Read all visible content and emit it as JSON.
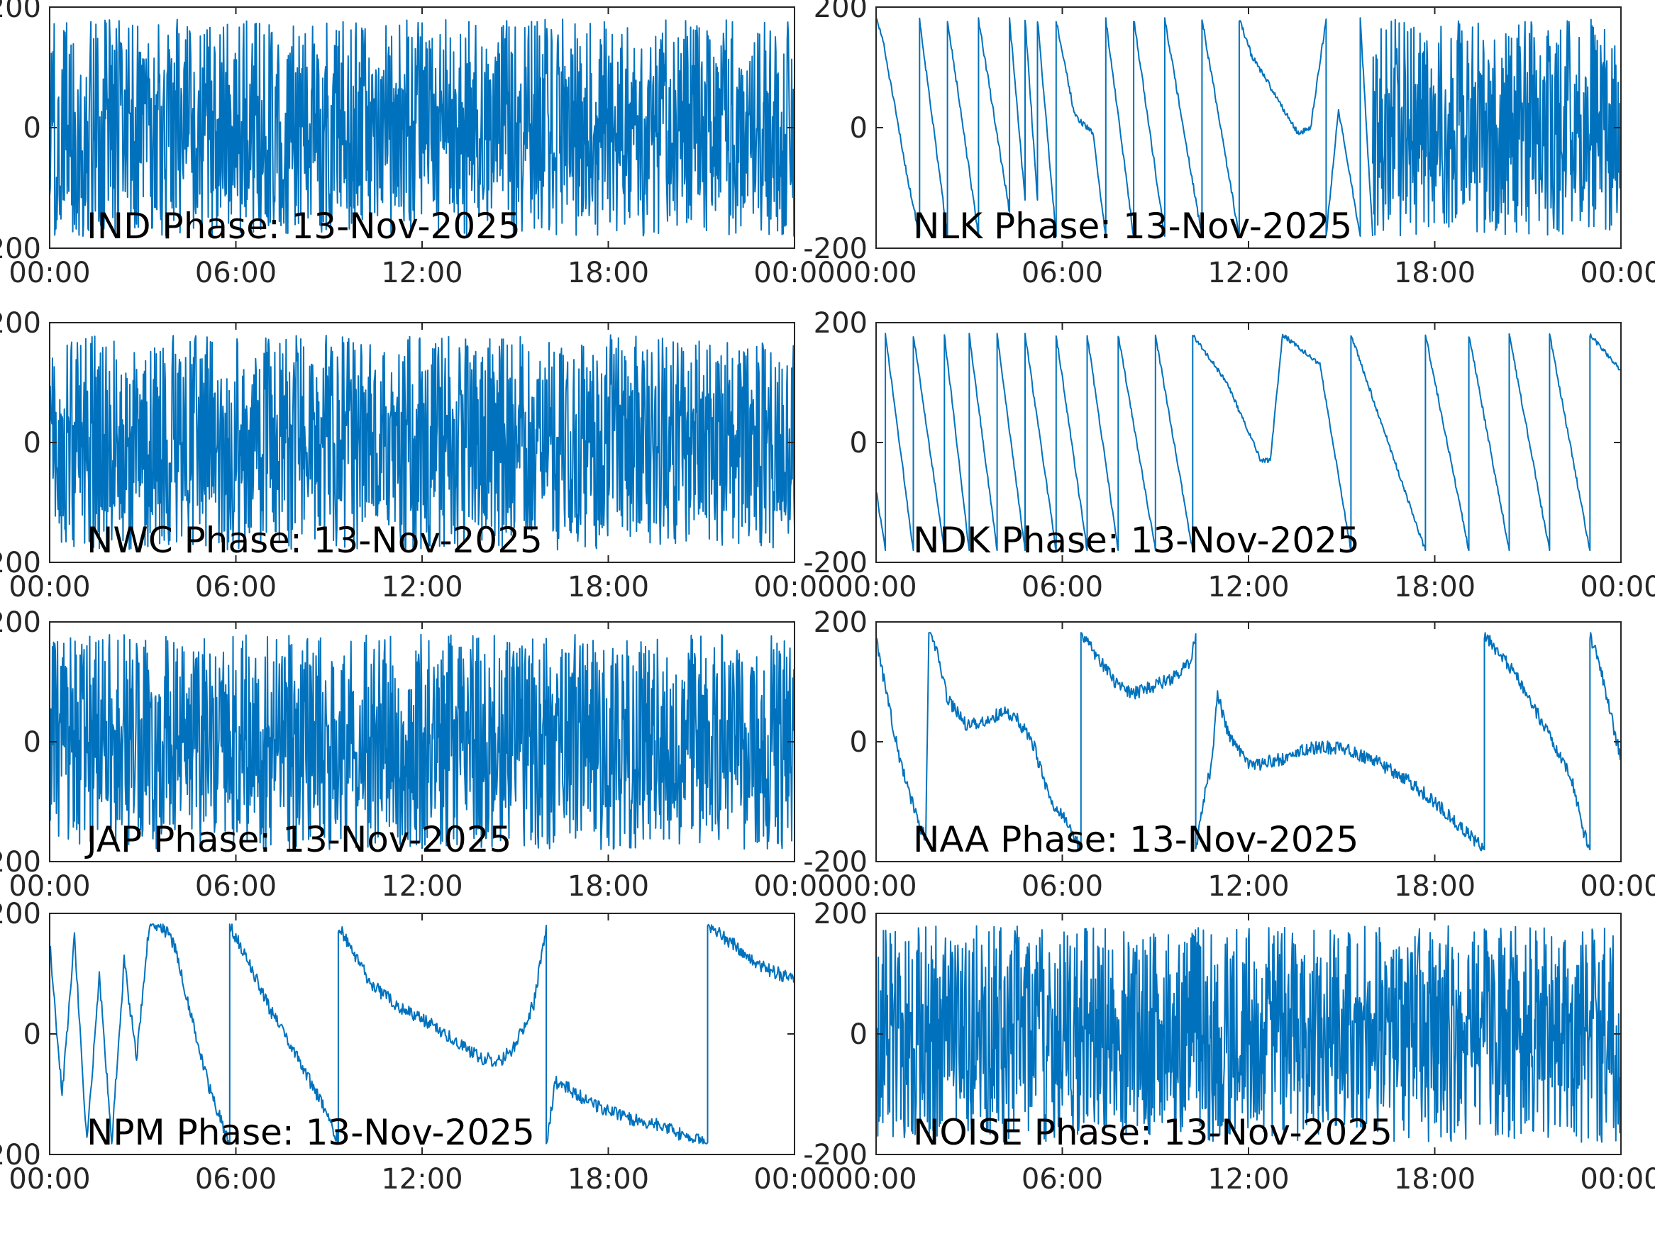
{
  "figure": {
    "line_color": "#0072BD",
    "frame_color": "#262626"
  },
  "chart_data": [
    {
      "type": "line",
      "label": "IND Phase: 13-Nov-2025",
      "xtick_labels": [
        "00:00",
        "06:00",
        "12:00",
        "18:00",
        "00:00"
      ],
      "ytick_labels": [
        "-200",
        "0",
        "200"
      ],
      "xlim_hours": [
        0,
        24
      ],
      "ylim": [
        -200,
        200
      ],
      "grid": false,
      "style": "wrap",
      "points": [
        [
          0,
          0
        ]
      ]
    },
    {
      "type": "line",
      "label": "NLK Phase: 13-Nov-2025",
      "xtick_labels": [
        "00:00",
        "06:00",
        "12:00",
        "18:00",
        "00:00"
      ],
      "ytick_labels": [
        "-200",
        "0",
        "200"
      ],
      "xlim_hours": [
        0,
        24
      ],
      "ylim": [
        -200,
        200
      ],
      "grid": false,
      "style": "mixed",
      "points": [
        [
          0,
          180
        ],
        [
          0.2,
          150
        ],
        [
          1,
          -80
        ],
        [
          1.4,
          -180
        ],
        [
          1.4,
          180
        ],
        [
          2.3,
          -180
        ],
        [
          2.3,
          180
        ],
        [
          3.3,
          -180
        ],
        [
          3.3,
          180
        ],
        [
          4.3,
          -140
        ],
        [
          4.3,
          180
        ],
        [
          4.8,
          -120
        ],
        [
          4.8,
          180
        ],
        [
          5.2,
          -120
        ],
        [
          5.2,
          180
        ],
        [
          5.8,
          -180
        ],
        [
          5.8,
          180
        ],
        [
          6.4,
          20
        ],
        [
          7.0,
          -10
        ],
        [
          7.2,
          -100
        ],
        [
          7.4,
          -180
        ],
        [
          7.4,
          180
        ],
        [
          8.3,
          -180
        ],
        [
          8.3,
          180
        ],
        [
          9.3,
          -180
        ],
        [
          9.3,
          180
        ],
        [
          10.5,
          -180
        ],
        [
          10.5,
          180
        ],
        [
          11.7,
          -180
        ],
        [
          11.7,
          180
        ],
        [
          12.1,
          120
        ],
        [
          13.6,
          -10
        ],
        [
          14,
          0
        ],
        [
          14.5,
          180
        ],
        [
          14.5,
          -180
        ],
        [
          14.9,
          30
        ],
        [
          15.6,
          -180
        ],
        [
          15.6,
          180
        ],
        [
          16,
          -180
        ]
      ],
      "wrap_from_hours": 16
    },
    {
      "type": "line",
      "label": "NWC Phase: 13-Nov-2025",
      "xtick_labels": [
        "00:00",
        "06:00",
        "12:00",
        "18:00",
        "00:00"
      ],
      "ytick_labels": [
        "-200",
        "0",
        "200"
      ],
      "xlim_hours": [
        0,
        24
      ],
      "ylim": [
        -200,
        200
      ],
      "grid": false,
      "style": "wrap",
      "points": [
        [
          0,
          0
        ]
      ]
    },
    {
      "type": "line",
      "label": "NDK Phase: 13-Nov-2025",
      "xtick_labels": [
        "00:00",
        "06:00",
        "12:00",
        "18:00",
        "00:00"
      ],
      "ytick_labels": [
        "-200",
        "0",
        "200"
      ],
      "xlim_hours": [
        0,
        24
      ],
      "ylim": [
        -200,
        200
      ],
      "grid": false,
      "style": "sawtooth",
      "points": [
        [
          0,
          -80
        ],
        [
          0.3,
          -180
        ],
        [
          0.3,
          180
        ],
        [
          1.2,
          -180
        ],
        [
          1.2,
          180
        ],
        [
          2.2,
          -180
        ],
        [
          2.2,
          180
        ],
        [
          3.0,
          -180
        ],
        [
          3.0,
          180
        ],
        [
          3.9,
          -180
        ],
        [
          3.9,
          180
        ],
        [
          4.8,
          -180
        ],
        [
          4.8,
          180
        ],
        [
          5.8,
          -180
        ],
        [
          5.8,
          180
        ],
        [
          6.8,
          -180
        ],
        [
          6.8,
          180
        ],
        [
          7.8,
          -180
        ],
        [
          7.8,
          180
        ],
        [
          9.0,
          -180
        ],
        [
          9.0,
          180
        ],
        [
          10.2,
          -180
        ],
        [
          10.2,
          180
        ],
        [
          11.3,
          100
        ],
        [
          12.4,
          -30
        ],
        [
          12.7,
          -30
        ],
        [
          13.1,
          180
        ],
        [
          14.3,
          130
        ],
        [
          15.3,
          -180
        ],
        [
          15.3,
          180
        ],
        [
          17.7,
          -180
        ],
        [
          17.7,
          180
        ],
        [
          19.1,
          -180
        ],
        [
          19.1,
          180
        ],
        [
          20.4,
          -180
        ],
        [
          20.4,
          180
        ],
        [
          21.7,
          -180
        ],
        [
          21.7,
          180
        ],
        [
          23.0,
          -180
        ],
        [
          23.0,
          180
        ],
        [
          24,
          120
        ]
      ]
    },
    {
      "type": "line",
      "label": "JAP Phase: 13-Nov-2025",
      "xtick_labels": [
        "00:00",
        "06:00",
        "12:00",
        "18:00",
        "00:00"
      ],
      "ytick_labels": [
        "-200",
        "0",
        "200"
      ],
      "xlim_hours": [
        0,
        24
      ],
      "ylim": [
        -200,
        200
      ],
      "grid": false,
      "style": "wrap",
      "points": [
        [
          0,
          0
        ]
      ]
    },
    {
      "type": "line",
      "label": "NAA Phase: 13-Nov-2025",
      "xtick_labels": [
        "00:00",
        "06:00",
        "12:00",
        "18:00",
        "00:00"
      ],
      "ytick_labels": [
        "-200",
        "0",
        "200"
      ],
      "xlim_hours": [
        0,
        24
      ],
      "ylim": [
        -200,
        200
      ],
      "grid": false,
      "style": "noisy",
      "points": [
        [
          0,
          170
        ],
        [
          0.8,
          -40
        ],
        [
          1.4,
          -140
        ],
        [
          1.6,
          -160
        ],
        [
          1.7,
          180
        ],
        [
          2.0,
          150
        ],
        [
          2.3,
          70
        ],
        [
          2.9,
          30
        ],
        [
          3.4,
          30
        ],
        [
          4.1,
          50
        ],
        [
          4.6,
          35
        ],
        [
          5.1,
          -10
        ],
        [
          5.6,
          -100
        ],
        [
          6.1,
          -130
        ],
        [
          6.5,
          -170
        ],
        [
          6.6,
          -180
        ],
        [
          6.6,
          180
        ],
        [
          7.0,
          150
        ],
        [
          7.7,
          100
        ],
        [
          8.2,
          80
        ],
        [
          8.8,
          90
        ],
        [
          9.5,
          105
        ],
        [
          10.1,
          130
        ],
        [
          10.3,
          180
        ],
        [
          10.3,
          -180
        ],
        [
          10.5,
          -110
        ],
        [
          10.8,
          -40
        ],
        [
          11.0,
          80
        ],
        [
          11.3,
          20
        ],
        [
          12.0,
          -40
        ],
        [
          13.0,
          -30
        ],
        [
          14.0,
          -10
        ],
        [
          15.0,
          -10
        ],
        [
          16.0,
          -30
        ],
        [
          17.0,
          -60
        ],
        [
          18.0,
          -100
        ],
        [
          19.0,
          -150
        ],
        [
          19.6,
          -180
        ],
        [
          19.6,
          180
        ],
        [
          20.5,
          120
        ],
        [
          21.5,
          30
        ],
        [
          22.4,
          -60
        ],
        [
          22.8,
          -150
        ],
        [
          23.0,
          -180
        ],
        [
          23.0,
          180
        ],
        [
          23.3,
          130
        ],
        [
          24,
          -30
        ]
      ]
    },
    {
      "type": "line",
      "label": "NPM Phase: 13-Nov-2025",
      "xtick_labels": [
        "00:00",
        "06:00",
        "12:00",
        "18:00",
        "00:00"
      ],
      "ytick_labels": [
        "-200",
        "0",
        "200"
      ],
      "xlim_hours": [
        0,
        24
      ],
      "ylim": [
        -200,
        200
      ],
      "grid": false,
      "style": "noisy",
      "points": [
        [
          0,
          150
        ],
        [
          0.4,
          -100
        ],
        [
          0.8,
          160
        ],
        [
          1.2,
          -180
        ],
        [
          1.6,
          100
        ],
        [
          2.0,
          -180
        ],
        [
          2.4,
          120
        ],
        [
          2.8,
          -40
        ],
        [
          3.2,
          180
        ],
        [
          3.6,
          180
        ],
        [
          4.0,
          150
        ],
        [
          4.6,
          20
        ],
        [
          5.2,
          -100
        ],
        [
          5.8,
          -180
        ],
        [
          5.8,
          180
        ],
        [
          6.5,
          110
        ],
        [
          7.2,
          30
        ],
        [
          8.0,
          -40
        ],
        [
          8.8,
          -120
        ],
        [
          9.3,
          -180
        ],
        [
          9.3,
          180
        ],
        [
          9.6,
          150
        ],
        [
          10.4,
          80
        ],
        [
          11.4,
          40
        ],
        [
          12.2,
          20
        ],
        [
          13.0,
          -10
        ],
        [
          13.9,
          -40
        ],
        [
          14.5,
          -45
        ],
        [
          15.0,
          -20
        ],
        [
          15.6,
          50
        ],
        [
          16.0,
          180
        ],
        [
          16.0,
          -180
        ],
        [
          16.3,
          -80
        ],
        [
          16.7,
          -90
        ],
        [
          17.6,
          -120
        ],
        [
          18.6,
          -140
        ],
        [
          19.6,
          -150
        ],
        [
          20.5,
          -170
        ],
        [
          21.2,
          -180
        ],
        [
          21.2,
          180
        ],
        [
          22.0,
          150
        ],
        [
          23.0,
          110
        ],
        [
          24,
          90
        ]
      ]
    },
    {
      "type": "line",
      "label": "NOISE Phase: 13-Nov-2025",
      "xtick_labels": [
        "00:00",
        "06:00",
        "12:00",
        "18:00",
        "00:00"
      ],
      "ytick_labels": [
        "-200",
        "0",
        "200"
      ],
      "xlim_hours": [
        0,
        24
      ],
      "ylim": [
        -200,
        200
      ],
      "grid": false,
      "style": "wrap",
      "points": [
        [
          0,
          0
        ]
      ]
    }
  ]
}
